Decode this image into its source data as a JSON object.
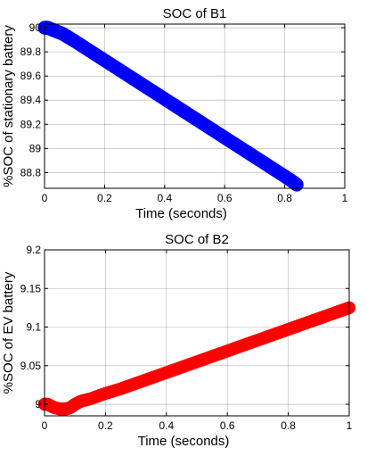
{
  "chart_data": [
    {
      "type": "scatter",
      "title": "SOC of B1",
      "xlabel": "Time (seconds)",
      "ylabel": "%SOC of stationary battery",
      "xlim": [
        0,
        1
      ],
      "ylim": [
        88.67,
        90.03
      ],
      "xticks": [
        0,
        0.2,
        0.4,
        0.6,
        0.8,
        1
      ],
      "xtick_labels": [
        "0",
        "0.2",
        "0.4",
        "0.6",
        "0.8",
        "1"
      ],
      "yticks": [
        88.8,
        89,
        89.2,
        89.4,
        89.6,
        89.8,
        90
      ],
      "ytick_labels": [
        "88.8",
        "89",
        "89.2",
        "89.4",
        "89.6",
        "89.8",
        "90"
      ],
      "grid": true,
      "marker": "filled-circle",
      "color": "#0000ff",
      "series": [
        {
          "x": [
            0,
            0.01,
            0.02,
            0.03,
            0.04,
            0.06,
            0.08,
            0.1,
            0.15,
            0.2,
            0.25,
            0.3,
            0.35,
            0.4,
            0.45,
            0.5,
            0.55,
            0.6,
            0.65,
            0.7,
            0.75,
            0.8,
            0.83,
            0.84
          ],
          "y": [
            90,
            90,
            89.99,
            89.98,
            89.97,
            89.95,
            89.92,
            89.89,
            89.81,
            89.73,
            89.65,
            89.57,
            89.49,
            89.41,
            89.33,
            89.25,
            89.17,
            89.09,
            89.01,
            88.93,
            88.85,
            88.77,
            88.72,
            88.7
          ]
        }
      ]
    },
    {
      "type": "scatter",
      "title": "SOC of B2",
      "xlabel": "Time (seconds)",
      "ylabel": "%SOC of EV battery",
      "xlim": [
        0,
        1
      ],
      "ylim": [
        8.985,
        9.2
      ],
      "xticks": [
        0,
        0.2,
        0.4,
        0.6,
        0.8,
        1
      ],
      "xtick_labels": [
        "0",
        "0.2",
        "0.4",
        "0.6",
        "0.8",
        "1"
      ],
      "yticks": [
        9,
        9.05,
        9.1,
        9.15,
        9.2
      ],
      "ytick_labels": [
        "9",
        "9.05",
        "9.1",
        "9.15",
        "9.2"
      ],
      "grid": true,
      "marker": "filled-circle",
      "color": "#ff0000",
      "series": [
        {
          "x": [
            0,
            0.01,
            0.02,
            0.03,
            0.04,
            0.05,
            0.06,
            0.07,
            0.08,
            0.09,
            0.1,
            0.12,
            0.15,
            0.2,
            0.25,
            0.3,
            0.35,
            0.4,
            0.45,
            0.5,
            0.55,
            0.6,
            0.65,
            0.7,
            0.75,
            0.8,
            0.85,
            0.9,
            0.95,
            1
          ],
          "y": [
            9.0,
            9.0,
            8.998,
            8.996,
            8.995,
            8.994,
            8.994,
            8.994,
            8.995,
            8.997,
            9.0,
            9.004,
            9.007,
            9.014,
            9.02,
            9.027,
            9.034,
            9.041,
            9.048,
            9.055,
            9.062,
            9.069,
            9.076,
            9.083,
            9.09,
            9.097,
            9.104,
            9.111,
            9.118,
            9.125
          ]
        }
      ]
    }
  ]
}
